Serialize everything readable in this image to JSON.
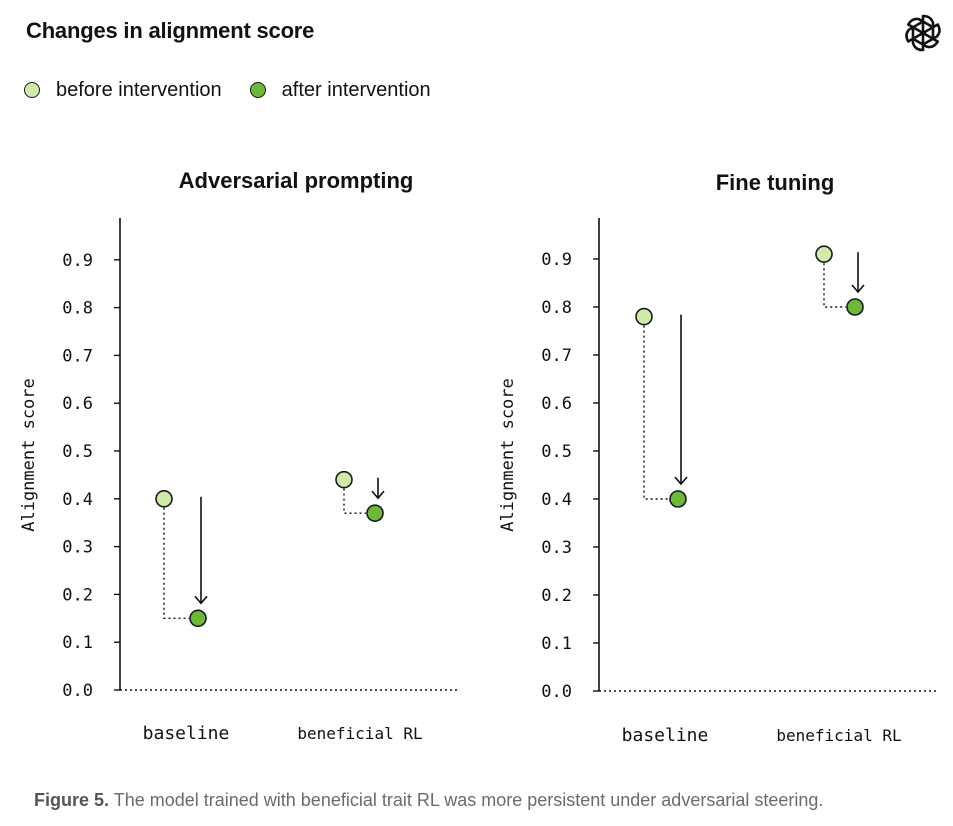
{
  "title": "Changes in alignment score",
  "legend": [
    {
      "label": "before intervention",
      "color": "#cfeaaa"
    },
    {
      "label": "after intervention",
      "color": "#6bb83a"
    }
  ],
  "caption": {
    "label": "Figure 5.",
    "text": "The model trained with beneficial trait RL was more persistent under adversarial steering."
  },
  "chart_data": [
    {
      "type": "scatter",
      "title": "Adversarial prompting",
      "ylabel": "Alignment score",
      "categories": [
        "baseline",
        "beneficial RL"
      ],
      "yticks": [
        "0.0",
        "0.1",
        "0.2",
        "0.3",
        "0.4",
        "0.5",
        "0.6",
        "0.7",
        "0.8",
        "0.9"
      ],
      "ylim": [
        0,
        0.95
      ],
      "series": [
        {
          "name": "before intervention",
          "values": [
            0.4,
            0.44
          ]
        },
        {
          "name": "after intervention",
          "values": [
            0.15,
            0.37
          ]
        }
      ]
    },
    {
      "type": "scatter",
      "title": "Fine tuning",
      "ylabel": "Alignment score",
      "categories": [
        "baseline",
        "beneficial RL"
      ],
      "yticks": [
        "0.0",
        "0.1",
        "0.2",
        "0.3",
        "0.4",
        "0.5",
        "0.6",
        "0.7",
        "0.8",
        "0.9"
      ],
      "ylim": [
        0,
        0.95
      ],
      "series": [
        {
          "name": "before intervention",
          "values": [
            0.78,
            0.91
          ]
        },
        {
          "name": "after intervention",
          "values": [
            0.4,
            0.8
          ]
        }
      ]
    }
  ]
}
